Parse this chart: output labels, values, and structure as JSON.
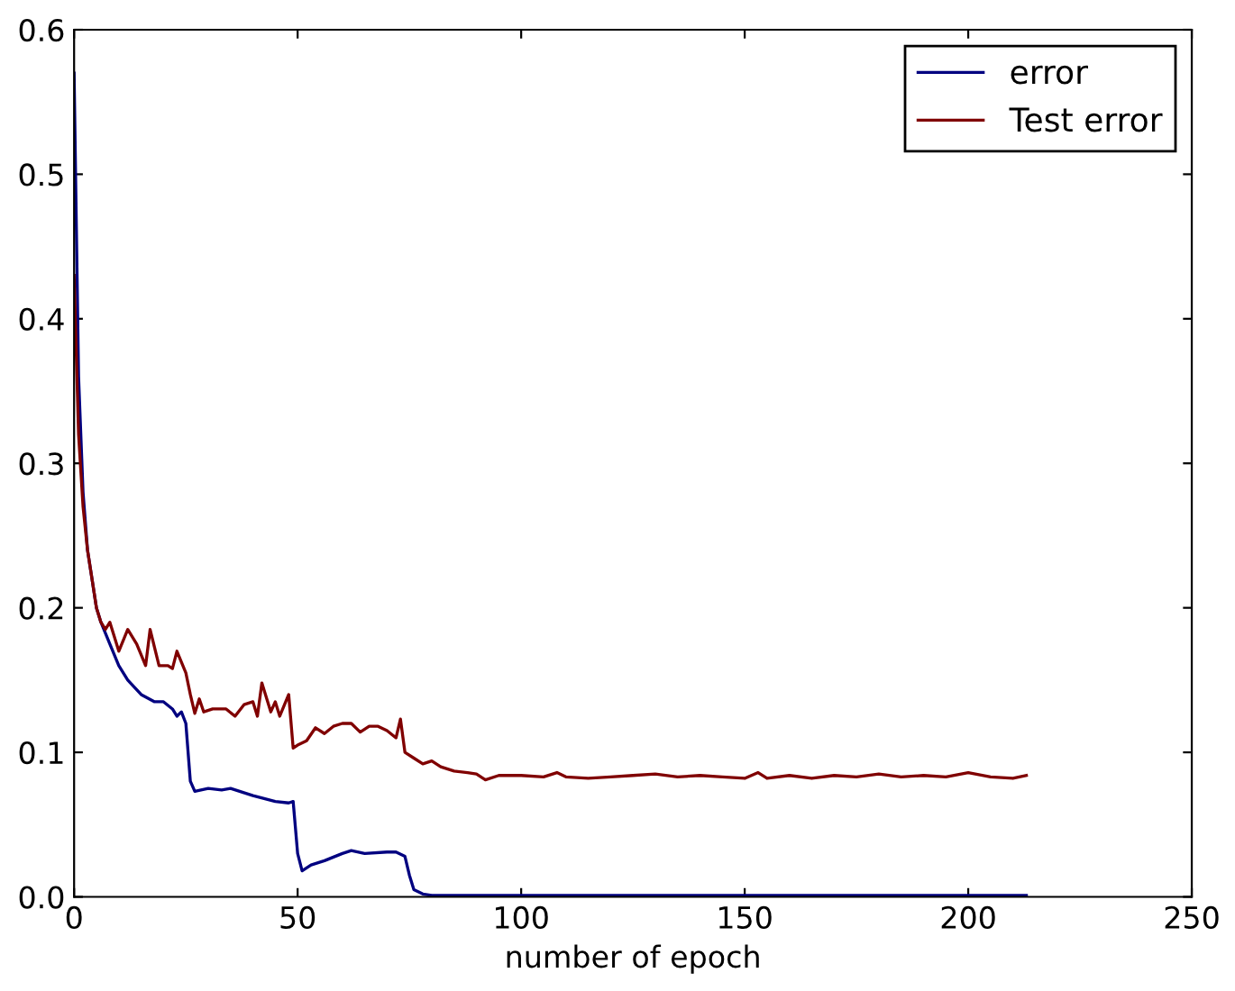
{
  "chart_data": {
    "type": "line",
    "xlabel": "number of epoch",
    "xlim": [
      0,
      250
    ],
    "ylim": [
      0,
      0.6
    ],
    "xticks": [
      0,
      50,
      100,
      150,
      200,
      250
    ],
    "yticks": [
      {
        "value": 0,
        "label": "0.0"
      },
      0.1,
      0.2,
      0.3,
      0.4,
      0.5,
      0.6
    ],
    "legend": "top right",
    "grid": false,
    "line_style": "solid",
    "marker": "none",
    "series": [
      {
        "name": "error",
        "color": "#000080",
        "x": [
          0,
          1,
          2,
          3,
          4,
          5,
          6,
          8,
          10,
          12,
          15,
          18,
          20,
          22,
          23,
          24,
          25,
          26,
          27,
          30,
          33,
          35,
          40,
          45,
          48,
          49,
          50,
          51,
          53,
          56,
          60,
          62,
          65,
          70,
          72,
          74,
          75,
          76,
          78,
          80,
          100,
          150,
          213
        ],
        "values": [
          0.57,
          0.36,
          0.28,
          0.24,
          0.22,
          0.2,
          0.19,
          0.175,
          0.16,
          0.15,
          0.14,
          0.135,
          0.135,
          0.13,
          0.125,
          0.128,
          0.12,
          0.08,
          0.073,
          0.075,
          0.074,
          0.075,
          0.07,
          0.066,
          0.065,
          0.066,
          0.03,
          0.018,
          0.022,
          0.025,
          0.03,
          0.032,
          0.03,
          0.031,
          0.031,
          0.028,
          0.015,
          0.005,
          0.002,
          0.001,
          0.001,
          0.001,
          0.001
        ]
      },
      {
        "name": "Test error",
        "color": "#800000",
        "x": [
          0,
          1,
          2,
          3,
          4,
          5,
          6,
          7,
          8,
          9,
          10,
          12,
          14,
          16,
          17,
          19,
          21,
          22,
          23,
          25,
          26,
          27,
          28,
          29,
          31,
          34,
          36,
          38,
          40,
          41,
          42,
          44,
          45,
          46,
          48,
          49,
          50,
          52,
          54,
          56,
          58,
          60,
          62,
          64,
          66,
          68,
          70,
          72,
          73,
          74,
          76,
          78,
          80,
          82,
          85,
          88,
          90,
          92,
          95,
          100,
          105,
          108,
          110,
          115,
          120,
          125,
          130,
          135,
          140,
          145,
          150,
          153,
          155,
          160,
          165,
          170,
          175,
          180,
          185,
          190,
          195,
          200,
          205,
          210,
          213
        ],
        "values": [
          0.43,
          0.32,
          0.27,
          0.24,
          0.22,
          0.2,
          0.19,
          0.185,
          0.19,
          0.18,
          0.17,
          0.185,
          0.175,
          0.16,
          0.185,
          0.16,
          0.16,
          0.158,
          0.17,
          0.155,
          0.14,
          0.127,
          0.137,
          0.128,
          0.13,
          0.13,
          0.125,
          0.133,
          0.135,
          0.125,
          0.148,
          0.128,
          0.135,
          0.125,
          0.14,
          0.103,
          0.105,
          0.108,
          0.117,
          0.113,
          0.118,
          0.12,
          0.12,
          0.114,
          0.118,
          0.118,
          0.115,
          0.11,
          0.123,
          0.1,
          0.096,
          0.092,
          0.094,
          0.09,
          0.087,
          0.086,
          0.085,
          0.081,
          0.084,
          0.084,
          0.083,
          0.086,
          0.083,
          0.082,
          0.083,
          0.084,
          0.085,
          0.083,
          0.084,
          0.083,
          0.082,
          0.086,
          0.082,
          0.084,
          0.082,
          0.084,
          0.083,
          0.085,
          0.083,
          0.084,
          0.083,
          0.086,
          0.083,
          0.082,
          0.084
        ]
      }
    ]
  }
}
